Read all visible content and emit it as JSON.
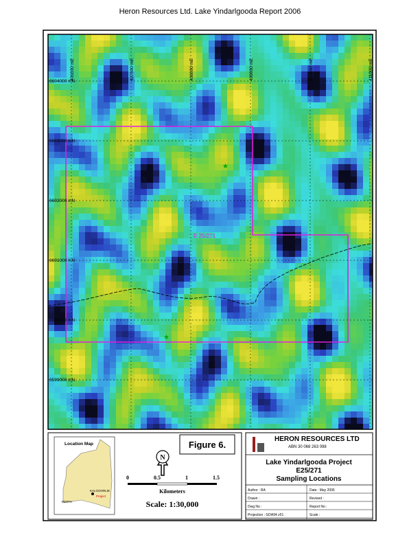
{
  "header": {
    "title": "Heron Resources Ltd.  Lake Yindarlgooda Report 2006"
  },
  "map": {
    "northings": [
      "6604000 mN",
      "6603000 mN",
      "6602000 mN",
      "6601000 mN",
      "6600000 mN",
      "6599000 mN"
    ],
    "eastings": [
      "406000 mE",
      "407000 mE",
      "408000 mE",
      "409000 mE",
      "410000 mE",
      "411000 mE"
    ],
    "tenement_label": "E 25/271"
  },
  "location_map": {
    "title": "Location Map",
    "town": "KALGOORLIE",
    "project": "Project",
    "city": "PERTH"
  },
  "north_arrow": {
    "label": "N"
  },
  "scale_bar": {
    "ticks": [
      "0",
      "0.5",
      "1",
      "1.5"
    ],
    "unit": "Kilometers",
    "scale": "Scale: 1:30,000"
  },
  "figure": {
    "label": "Figure 6."
  },
  "title_block": {
    "company": "HERON RESOURCES LTD",
    "abn": "ABN 30 068 263 098",
    "lines": [
      "Lake Yindarlgooda Project",
      "E25/271",
      "Sampling Locations"
    ],
    "rows": [
      [
        "Author : RA",
        "Date : May 2006"
      ],
      [
        "Drawn :",
        "Revised :"
      ],
      [
        "Dwg No :",
        "Report No :"
      ],
      [
        "Projection : GDA94 z51",
        "Scale :"
      ]
    ]
  }
}
